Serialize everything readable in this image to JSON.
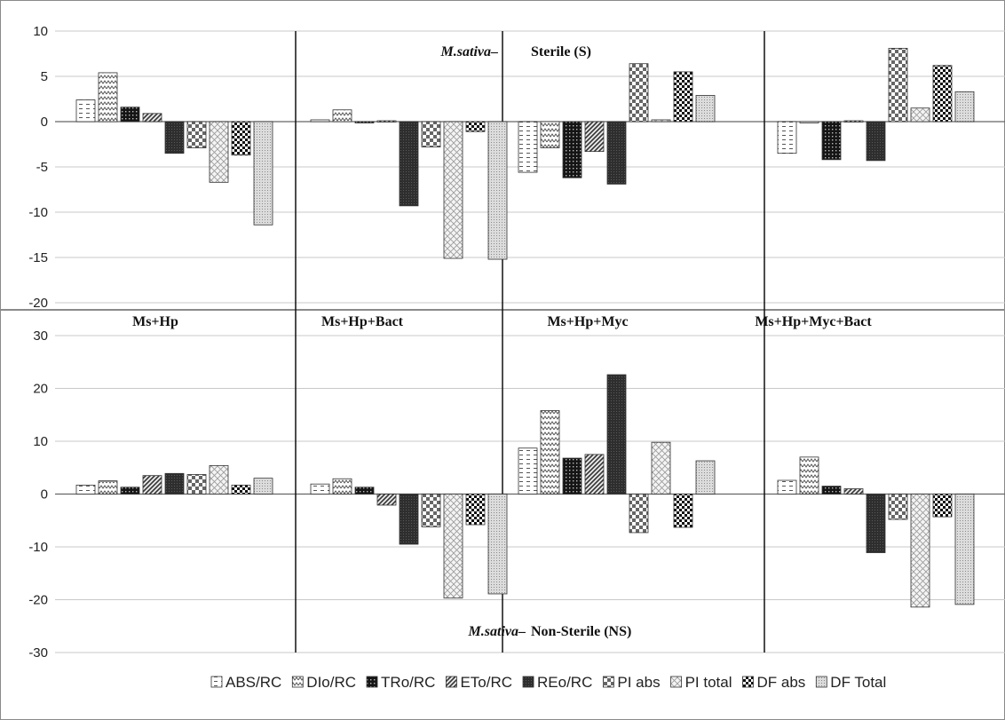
{
  "chart_data": [
    {
      "type": "bar",
      "group": "sterile",
      "label_species": "M.sativa–",
      "label_condition": "Sterile (S)",
      "ylim": [
        -20,
        10
      ],
      "yticks": [
        "10",
        "5",
        "0",
        "-5",
        "-10",
        "-15",
        "-20"
      ],
      "categories": [
        "Ms+Hp",
        "Ms+Hp+Bact",
        "Ms+Hp+Myc",
        "Ms+Hp+Myc+Bact"
      ],
      "series": [
        {
          "name": "ABS/RC",
          "values": [
            2.4,
            0.2,
            -5.6,
            -3.5
          ]
        },
        {
          "name": "DIo/RC",
          "values": [
            5.4,
            1.3,
            -2.9,
            -0.1
          ]
        },
        {
          "name": "TRo/RC",
          "values": [
            1.6,
            0.0,
            -6.2,
            -4.2
          ]
        },
        {
          "name": "ETo/RC",
          "values": [
            0.9,
            0.1,
            -3.3,
            0.1
          ]
        },
        {
          "name": "REo/RC",
          "values": [
            -3.5,
            -9.3,
            -6.9,
            -4.3
          ]
        },
        {
          "name": "PI abs",
          "values": [
            -2.9,
            -2.8,
            6.4,
            8.1
          ]
        },
        {
          "name": "PI total",
          "values": [
            -6.7,
            -15.1,
            0.2,
            1.5
          ]
        },
        {
          "name": "DF abs",
          "values": [
            -3.7,
            -1.1,
            5.5,
            6.2
          ]
        },
        {
          "name": "DF Total",
          "values": [
            -11.4,
            -15.2,
            2.9,
            3.3
          ]
        }
      ]
    },
    {
      "type": "bar",
      "group": "non-sterile",
      "label_species": "M.sativa–",
      "label_condition": "Non-Sterile (NS)",
      "ylim": [
        -30,
        30
      ],
      "yticks": [
        "30",
        "20",
        "10",
        "0",
        "-10",
        "-20",
        "-30"
      ],
      "categories": [
        "Ms+Hp",
        "Ms+Hp+Bact",
        "Ms+Hp+Myc",
        "Ms+Hp+Myc+Bact"
      ],
      "series": [
        {
          "name": "ABS/RC",
          "values": [
            1.7,
            1.9,
            8.7,
            2.6
          ]
        },
        {
          "name": "DIo/RC",
          "values": [
            2.5,
            2.9,
            15.8,
            7.0
          ]
        },
        {
          "name": "TRo/RC",
          "values": [
            1.3,
            1.3,
            6.8,
            1.5
          ]
        },
        {
          "name": "ETo/RC",
          "values": [
            3.5,
            -2.1,
            7.5,
            1.0
          ]
        },
        {
          "name": "REo/RC",
          "values": [
            3.9,
            -9.5,
            22.6,
            -11.1
          ]
        },
        {
          "name": "PI abs",
          "values": [
            3.7,
            -6.2,
            -7.3,
            -4.8
          ]
        },
        {
          "name": "PI total",
          "values": [
            5.4,
            -19.7,
            9.8,
            -21.4
          ]
        },
        {
          "name": "DF abs",
          "values": [
            1.7,
            -5.8,
            -6.3,
            -4.3
          ]
        },
        {
          "name": "DF Total",
          "values": [
            3.0,
            -18.9,
            6.3,
            -20.9
          ]
        }
      ]
    }
  ],
  "legend": {
    "placement": "bottom",
    "items": [
      "ABS/RC",
      "DIo/RC",
      "TRo/RC",
      "ETo/RC",
      "REo/RC",
      "PI abs",
      "PI total",
      "DF abs",
      "DF Total"
    ]
  }
}
